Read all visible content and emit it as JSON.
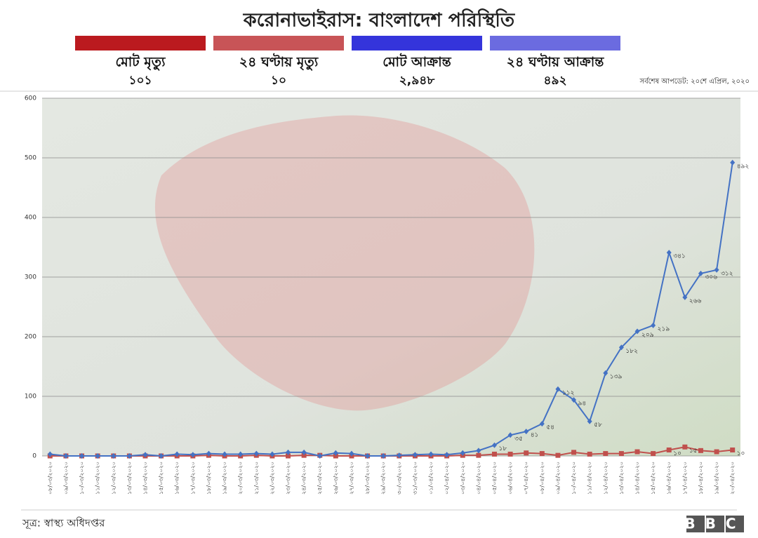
{
  "chart_data": {
    "type": "line",
    "title": "করোনাভাইরাস: বাংলাদেশ পরিস্থিতি",
    "summary": [
      {
        "label": "মোট মৃত্যু",
        "value": "১০১",
        "color": "#bb1a1f"
      },
      {
        "label": "২৪ ঘণ্টায় মৃত্যু",
        "value": "১০",
        "color": "#c85457"
      },
      {
        "label": "মোট আক্রান্ত",
        "value": "২,৯৪৮",
        "color": "#3434db"
      },
      {
        "label": "২৪ ঘণ্টায় আক্রান্ত",
        "value": "৪৯২",
        "color": "#6b6be0"
      }
    ],
    "update": "সর্বশেষ আপডেট: ২০শে এপ্রিল, ২০২০",
    "source": "সূত্র: স্বাস্থ্য অধিদপ্তর",
    "logo": "BBC",
    "categories": [
      "০৮/০৩/২০২০",
      "০৯/০৩/২০২০",
      "১০/০৩/২০২০",
      "১১/০৩/২০২০",
      "১২/০৩/২০২০",
      "১৩/০৩/২০২০",
      "১৪/০৩/২০২০",
      "১৫/০৩/২০২০",
      "১৬/০৩/২০২০",
      "১৭/০৩/২০২০",
      "১৮/০৩/২০২০",
      "১৯/০৩/২০২০",
      "২০/০৩/২০২০",
      "২১/০৩/২০২০",
      "২২/০৩/২০২০",
      "২৩/০৩/২০২০",
      "২৪/০৩/২০২০",
      "২৫/০৩/২০২০",
      "২৬/০৩/২০২০",
      "২৭/০৩/২০২০",
      "২৮/০৩/২০২০",
      "২৯/০৩/২০২০",
      "৩০/০৩/২০২০",
      "৩১/০৩/২০২০",
      "০১/০৪/২০২০",
      "০২/০৪/২০২০",
      "০৩/০৪/২০২০",
      "০৪/০৪/২০২০",
      "০৫/০৪/২০২০",
      "০৬/০৪/২০২০",
      "০৭/০৪/২০২০",
      "০৮/০৪/২০২০",
      "০৯/০৪/২০২০",
      "১০/০৪/২০২০",
      "১১/০৪/২০২০",
      "১২/০৪/২০২০",
      "১৩/০৪/২০২০",
      "১৪/০৪/২০২০",
      "১৫/০৪/২০২০",
      "১৬/০৪/২০২০",
      "১৭/০৪/২০২০",
      "১৮/০৪/২০২০",
      "১৯/০৪/২০২০",
      "২০/০৪/২০২০"
    ],
    "series": [
      {
        "color": "#4472c4",
        "marker": "diamond",
        "values": [
          3,
          0,
          0,
          0,
          0,
          0,
          2,
          0,
          3,
          2,
          4,
          3,
          3,
          4,
          3,
          6,
          6,
          0,
          5,
          4,
          0,
          0,
          1,
          2,
          3,
          2,
          5,
          9,
          18,
          35,
          41,
          54,
          112,
          94,
          58,
          139,
          182,
          209,
          219,
          341,
          266,
          306,
          312,
          492
        ],
        "value_labels": [
          null,
          null,
          null,
          null,
          null,
          null,
          null,
          null,
          null,
          null,
          null,
          null,
          null,
          null,
          null,
          null,
          null,
          null,
          null,
          null,
          null,
          null,
          null,
          null,
          null,
          null,
          null,
          null,
          "১৮",
          "৩৫",
          "৪১",
          "৫৪",
          "১১২",
          "৯৪",
          "৫৮",
          "১৩৯",
          "১৮২",
          "২০৯",
          "২১৯",
          "৩৪১",
          "২৬৬",
          "৩০৬",
          "৩১২",
          "৪৯২"
        ]
      },
      {
        "color": "#c0504d",
        "marker": "square",
        "values": [
          0,
          0,
          0,
          0,
          0,
          0,
          0,
          0,
          0,
          0,
          1,
          0,
          0,
          1,
          0,
          0,
          1,
          1,
          0,
          0,
          0,
          0,
          0,
          0,
          0,
          0,
          1,
          1,
          3,
          3,
          5,
          4,
          1,
          6,
          3,
          4,
          4,
          7,
          4,
          10,
          15,
          9,
          7,
          10
        ],
        "value_labels": [
          null,
          null,
          null,
          null,
          null,
          null,
          null,
          null,
          null,
          null,
          null,
          null,
          null,
          null,
          null,
          null,
          null,
          null,
          null,
          null,
          null,
          null,
          null,
          null,
          null,
          null,
          null,
          null,
          null,
          null,
          null,
          null,
          null,
          null,
          null,
          null,
          null,
          null,
          null,
          "১০",
          "১৫",
          null,
          null,
          "১০"
        ]
      }
    ],
    "ylim": [
      0,
      600
    ],
    "yticks": [
      0,
      100,
      200,
      300,
      400,
      500,
      600
    ],
    "grid": true
  }
}
